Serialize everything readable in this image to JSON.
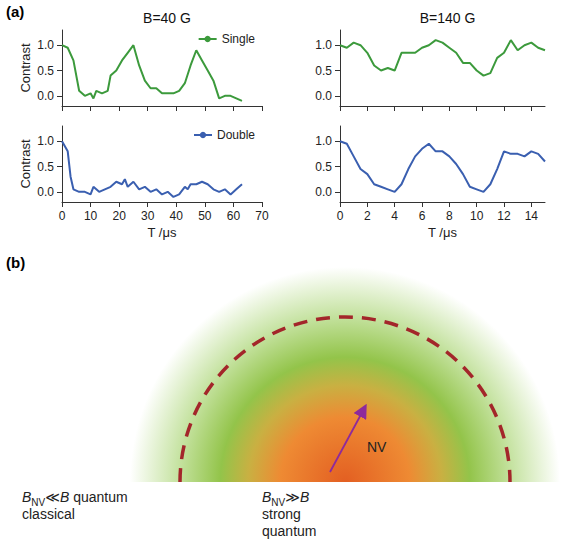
{
  "panel_a_label": "(a)",
  "chart_data": [
    {
      "type": "line",
      "title": "B=40 G",
      "ylabel": "Contrast",
      "legend": "upper right",
      "tick_labels": "y",
      "x": [
        0,
        2,
        4,
        6,
        8,
        10,
        11,
        12,
        14,
        16,
        17,
        19,
        21,
        23,
        25,
        27,
        29,
        31,
        33,
        35,
        37,
        39,
        41,
        43,
        45,
        47,
        49,
        51,
        53,
        55,
        57,
        59,
        61,
        63
      ],
      "series": [
        {
          "name": "Single",
          "color": "#3c9a3c",
          "values": [
            1.0,
            0.95,
            0.7,
            0.1,
            0.0,
            0.05,
            -0.05,
            0.1,
            0.05,
            0.1,
            0.4,
            0.5,
            0.7,
            0.85,
            1.0,
            0.6,
            0.3,
            0.15,
            0.15,
            0.05,
            0.05,
            0.05,
            0.1,
            0.25,
            0.6,
            0.9,
            0.7,
            0.5,
            0.3,
            -0.05,
            0.0,
            0.0,
            -0.05,
            -0.1
          ]
        }
      ],
      "xlim": [
        0,
        70
      ],
      "xticks": [
        0,
        10,
        20,
        30,
        40,
        50,
        60,
        70
      ],
      "ylim": [
        -0.2,
        1.3
      ],
      "yticks": [
        {
          "value": 0,
          "label": "0.0"
        },
        {
          "value": 0.5,
          "label": "0.5"
        },
        {
          "value": 1,
          "label": "1.0"
        }
      ]
    },
    {
      "type": "line",
      "title": "B=140 G",
      "tick_labels": "y",
      "x": [
        0,
        0.5,
        1,
        1.5,
        2,
        2.5,
        3,
        3.5,
        4,
        4.5,
        5,
        5.5,
        6,
        6.5,
        7,
        7.5,
        8,
        8.5,
        9,
        9.5,
        10,
        10.5,
        11,
        11.5,
        12,
        12.5,
        13,
        13.5,
        14,
        14.5,
        15
      ],
      "series": [
        {
          "color": "#3c9a3c",
          "values": [
            1.0,
            0.95,
            1.05,
            1.0,
            0.85,
            0.6,
            0.5,
            0.55,
            0.5,
            0.85,
            0.85,
            0.85,
            0.95,
            1.0,
            1.1,
            1.05,
            0.95,
            0.85,
            0.65,
            0.65,
            0.5,
            0.4,
            0.45,
            0.75,
            0.85,
            1.1,
            0.9,
            1.0,
            1.05,
            0.95,
            0.9
          ]
        }
      ],
      "xlim": [
        0,
        15
      ],
      "xticks": [
        0,
        2,
        4,
        6,
        8,
        10,
        12,
        14
      ],
      "ylim": [
        -0.2,
        1.3
      ],
      "yticks": [
        {
          "value": 0,
          "label": "0.0"
        },
        {
          "value": 0.5,
          "label": "0.5"
        },
        {
          "value": 1,
          "label": "1.0"
        }
      ]
    },
    {
      "type": "line",
      "ylabel": "Contrast",
      "xlabel": "T /μs",
      "legend": "upper right",
      "x": [
        0,
        2,
        3,
        4,
        6,
        8,
        10,
        11,
        13,
        15,
        17,
        19,
        21,
        22,
        23,
        25,
        27,
        29,
        31,
        33,
        35,
        37,
        39,
        41,
        43,
        44,
        45,
        47,
        49,
        51,
        53,
        55,
        57,
        59,
        61,
        63
      ],
      "series": [
        {
          "name": "Double",
          "color": "#3a5fb0",
          "values": [
            1.0,
            0.8,
            0.3,
            0.05,
            0.0,
            0.0,
            -0.05,
            0.1,
            0.0,
            0.05,
            0.1,
            0.2,
            0.15,
            0.25,
            0.1,
            0.2,
            0.05,
            0.1,
            0.0,
            0.05,
            -0.05,
            0.0,
            -0.1,
            -0.05,
            0.1,
            0.05,
            0.15,
            0.15,
            0.2,
            0.15,
            0.05,
            0.0,
            0.05,
            -0.05,
            0.05,
            0.15
          ]
        }
      ],
      "xlim": [
        0,
        70
      ],
      "xticks": [
        0,
        10,
        20,
        30,
        40,
        50,
        60,
        70
      ],
      "ylim": [
        -0.2,
        1.3
      ],
      "yticks": [
        {
          "value": 0,
          "label": "0.0"
        },
        {
          "value": 0.5,
          "label": "0.5"
        },
        {
          "value": 1,
          "label": "1.0"
        }
      ]
    },
    {
      "type": "line",
      "xlabel": "T /μs",
      "x": [
        0,
        0.5,
        1,
        1.5,
        2,
        2.5,
        3,
        3.5,
        4,
        4.5,
        5,
        5.5,
        6,
        6.5,
        7,
        7.5,
        8,
        8.5,
        9,
        9.5,
        10,
        10.5,
        11,
        11.5,
        12,
        12.5,
        13,
        13.5,
        14,
        14.5,
        15
      ],
      "series": [
        {
          "color": "#3a5fb0",
          "values": [
            1.0,
            0.95,
            0.7,
            0.45,
            0.35,
            0.15,
            0.1,
            0.05,
            0.0,
            0.15,
            0.45,
            0.7,
            0.85,
            0.95,
            0.8,
            0.8,
            0.7,
            0.55,
            0.35,
            0.1,
            0.05,
            0.0,
            0.15,
            0.45,
            0.8,
            0.75,
            0.75,
            0.7,
            0.8,
            0.75,
            0.6
          ]
        }
      ],
      "xlim": [
        0,
        15
      ],
      "xticks": [
        0,
        2,
        4,
        6,
        8,
        10,
        12,
        14
      ],
      "ylim": [
        -0.2,
        1.3
      ],
      "yticks": [
        {
          "value": 0,
          "label": "0.0"
        },
        {
          "value": 0.5,
          "label": "0.5"
        },
        {
          "value": 1,
          "label": "1.0"
        }
      ]
    }
  ],
  "diagram": {
    "label": "(b)",
    "center_label": "NV",
    "outer": {
      "formula": {
        "symbol": "B",
        "subscript": "NV",
        "relation": "≪",
        "compare": "B"
      },
      "same_line": "quantum",
      "lines": [
        "classical"
      ]
    },
    "inner": {
      "formula": {
        "symbol": "B",
        "subscript": "NV",
        "relation": "≫",
        "compare": "B"
      },
      "lines": [
        "strong",
        "quantum"
      ]
    }
  }
}
